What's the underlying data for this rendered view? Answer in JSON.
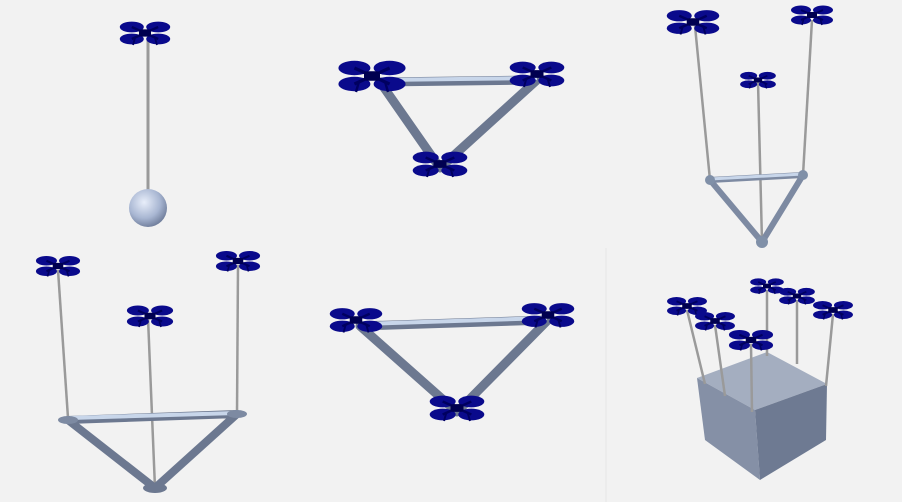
{
  "colors": {
    "background": "#f2f2f2",
    "drone": "#0a0a8c",
    "cable": "#9a9a9a",
    "rod_light": "#b8c8de",
    "rod_dark": "#6c7890",
    "payload": "#8090a8"
  },
  "panels": [
    {
      "name": "point-mass-payload-single-drone",
      "drones": 1,
      "payload": "sphere"
    },
    {
      "name": "triangle-payload-three-drones-top-view",
      "drones": 3,
      "payload": "triangle-frame"
    },
    {
      "name": "triangle-payload-three-drones-perspective",
      "drones": 3,
      "payload": "triangle-frame"
    },
    {
      "name": "triangle-payload-three-drones-side-view",
      "drones": 3,
      "payload": "triangle-frame"
    },
    {
      "name": "triangle-payload-three-drones-top-view-alt",
      "drones": 3,
      "payload": "triangle-frame"
    },
    {
      "name": "cube-payload-five-drones",
      "drones": 5,
      "payload": "cube"
    }
  ]
}
